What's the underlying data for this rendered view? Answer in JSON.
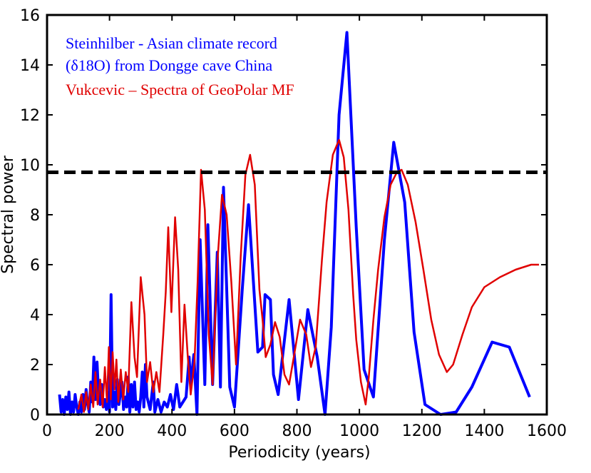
{
  "chart_data": {
    "type": "line",
    "xlabel": "Periodicity (years)",
    "ylabel": "Spectral power",
    "xlim": [
      0,
      1600
    ],
    "ylim": [
      0,
      16
    ],
    "xticks": [
      "0",
      "200",
      "400",
      "600",
      "800",
      "1000",
      "1200",
      "1400",
      "1600"
    ],
    "yticks": [
      "0",
      "2",
      "4",
      "6",
      "8",
      "10",
      "12",
      "14",
      "16"
    ],
    "grid": false,
    "annotations": [
      {
        "text": "Steinhilber - Asian climate record",
        "color": "#0000ff"
      },
      {
        "text": "(δ18O) from Dongge cave China",
        "color": "#0000ff"
      },
      {
        "text": "Vukcevic – Spectra of GeoPolar MF",
        "color": "#e00000"
      }
    ],
    "threshold": {
      "y": 9.7,
      "style": "dashed",
      "color": "#000000"
    },
    "series": [
      {
        "color": "#0000ff",
        "points": [
          [
            40,
            0.8
          ],
          [
            45,
            0.1
          ],
          [
            50,
            0.6
          ],
          [
            55,
            0.0
          ],
          [
            60,
            0.7
          ],
          [
            65,
            0.2
          ],
          [
            70,
            0.9
          ],
          [
            75,
            0.0
          ],
          [
            80,
            0.5
          ],
          [
            85,
            0.1
          ],
          [
            90,
            0.8
          ],
          [
            95,
            0.3
          ],
          [
            100,
            0.0
          ],
          [
            105,
            0.5
          ],
          [
            110,
            0.1
          ],
          [
            115,
            0.8
          ],
          [
            120,
            0.2
          ],
          [
            125,
            1.0
          ],
          [
            130,
            0.4
          ],
          [
            135,
            0.1
          ],
          [
            140,
            1.3
          ],
          [
            145,
            0.5
          ],
          [
            150,
            2.3
          ],
          [
            155,
            0.6
          ],
          [
            160,
            2.1
          ],
          [
            165,
            0.8
          ],
          [
            170,
            0.4
          ],
          [
            175,
            1.2
          ],
          [
            180,
            0.3
          ],
          [
            185,
            0.6
          ],
          [
            190,
            0.2
          ],
          [
            195,
            0.9
          ],
          [
            200,
            0.1
          ],
          [
            205,
            4.8
          ],
          [
            210,
            0.3
          ],
          [
            215,
            0.9
          ],
          [
            220,
            0.2
          ],
          [
            225,
            1.4
          ],
          [
            230,
            0.4
          ],
          [
            240,
            1.3
          ],
          [
            245,
            0.2
          ],
          [
            250,
            0.7
          ],
          [
            255,
            0.3
          ],
          [
            260,
            1.5
          ],
          [
            265,
            0.1
          ],
          [
            270,
            1.2
          ],
          [
            275,
            0.3
          ],
          [
            280,
            1.3
          ],
          [
            285,
            0.2
          ],
          [
            290,
            0.5
          ],
          [
            295,
            0.1
          ],
          [
            300,
            0.7
          ],
          [
            305,
            1.7
          ],
          [
            310,
            0.3
          ],
          [
            315,
            2.0
          ],
          [
            320,
            0.7
          ],
          [
            330,
            0.2
          ],
          [
            340,
            1.3
          ],
          [
            345,
            0.1
          ],
          [
            355,
            0.6
          ],
          [
            365,
            0.1
          ],
          [
            375,
            0.5
          ],
          [
            385,
            0.3
          ],
          [
            395,
            0.8
          ],
          [
            405,
            0.2
          ],
          [
            415,
            1.2
          ],
          [
            425,
            0.3
          ],
          [
            435,
            0.5
          ],
          [
            445,
            0.7
          ],
          [
            455,
            2.3
          ],
          [
            460,
            1.2
          ],
          [
            470,
            2.4
          ],
          [
            480,
            0.0
          ],
          [
            490,
            7.0
          ],
          [
            505,
            1.2
          ],
          [
            515,
            7.6
          ],
          [
            530,
            1.2
          ],
          [
            545,
            6.5
          ],
          [
            555,
            1.1
          ],
          [
            565,
            9.1
          ],
          [
            585,
            1.1
          ],
          [
            600,
            0.3
          ],
          [
            625,
            5.0
          ],
          [
            645,
            8.4
          ],
          [
            675,
            2.5
          ],
          [
            690,
            2.7
          ],
          [
            698,
            4.8
          ],
          [
            715,
            4.6
          ],
          [
            725,
            1.6
          ],
          [
            740,
            0.8
          ],
          [
            775,
            4.6
          ],
          [
            805,
            0.6
          ],
          [
            835,
            4.2
          ],
          [
            865,
            2.3
          ],
          [
            890,
            0.0
          ],
          [
            910,
            3.5
          ],
          [
            935,
            12.0
          ],
          [
            960,
            15.3
          ],
          [
            990,
            7.5
          ],
          [
            1015,
            1.8
          ],
          [
            1045,
            0.7
          ],
          [
            1080,
            7.0
          ],
          [
            1110,
            10.9
          ],
          [
            1145,
            8.5
          ],
          [
            1175,
            3.3
          ],
          [
            1210,
            0.4
          ],
          [
            1260,
            0.0
          ],
          [
            1310,
            0.1
          ],
          [
            1360,
            1.1
          ],
          [
            1425,
            2.9
          ],
          [
            1480,
            2.7
          ],
          [
            1545,
            0.7
          ]
        ]
      },
      {
        "color": "#e00000",
        "points": [
          [
            100,
            0.2
          ],
          [
            110,
            0.8
          ],
          [
            118,
            0.1
          ],
          [
            125,
            0.9
          ],
          [
            132,
            0.2
          ],
          [
            140,
            1.2
          ],
          [
            148,
            0.3
          ],
          [
            155,
            1.7
          ],
          [
            162,
            0.4
          ],
          [
            170,
            1.4
          ],
          [
            178,
            0.3
          ],
          [
            185,
            1.9
          ],
          [
            192,
            0.5
          ],
          [
            198,
            2.7
          ],
          [
            204,
            0.6
          ],
          [
            210,
            2.5
          ],
          [
            216,
            1.0
          ],
          [
            222,
            2.2
          ],
          [
            228,
            0.5
          ],
          [
            236,
            1.8
          ],
          [
            244,
            0.6
          ],
          [
            252,
            1.7
          ],
          [
            260,
            0.9
          ],
          [
            270,
            4.5
          ],
          [
            280,
            2.3
          ],
          [
            288,
            1.5
          ],
          [
            300,
            5.5
          ],
          [
            312,
            4.0
          ],
          [
            320,
            1.3
          ],
          [
            330,
            2.1
          ],
          [
            340,
            0.9
          ],
          [
            350,
            1.7
          ],
          [
            360,
            0.9
          ],
          [
            372,
            3.2
          ],
          [
            380,
            4.9
          ],
          [
            388,
            7.5
          ],
          [
            398,
            4.1
          ],
          [
            410,
            7.9
          ],
          [
            420,
            5.8
          ],
          [
            430,
            1.3
          ],
          [
            440,
            4.4
          ],
          [
            450,
            2.4
          ],
          [
            460,
            0.8
          ],
          [
            472,
            2.1
          ],
          [
            482,
            5.3
          ],
          [
            493,
            9.8
          ],
          [
            505,
            8.2
          ],
          [
            518,
            3.2
          ],
          [
            530,
            1.2
          ],
          [
            546,
            6.2
          ],
          [
            560,
            8.8
          ],
          [
            575,
            8.0
          ],
          [
            590,
            5.3
          ],
          [
            605,
            2.0
          ],
          [
            620,
            6.3
          ],
          [
            635,
            9.6
          ],
          [
            650,
            10.4
          ],
          [
            665,
            9.2
          ],
          [
            680,
            5.0
          ],
          [
            690,
            3.8
          ],
          [
            700,
            2.3
          ],
          [
            715,
            2.8
          ],
          [
            730,
            3.7
          ],
          [
            745,
            3.1
          ],
          [
            760,
            1.6
          ],
          [
            775,
            1.2
          ],
          [
            790,
            2.3
          ],
          [
            810,
            3.8
          ],
          [
            830,
            3.2
          ],
          [
            845,
            1.9
          ],
          [
            860,
            2.7
          ],
          [
            880,
            6.2
          ],
          [
            895,
            8.5
          ],
          [
            915,
            10.4
          ],
          [
            935,
            11.0
          ],
          [
            950,
            10.3
          ],
          [
            965,
            8.2
          ],
          [
            980,
            4.8
          ],
          [
            990,
            3.0
          ],
          [
            1005,
            1.3
          ],
          [
            1020,
            0.4
          ],
          [
            1030,
            1.5
          ],
          [
            1045,
            3.8
          ],
          [
            1060,
            5.8
          ],
          [
            1080,
            7.9
          ],
          [
            1100,
            9.2
          ],
          [
            1120,
            9.7
          ],
          [
            1135,
            9.8
          ],
          [
            1155,
            9.2
          ],
          [
            1180,
            7.7
          ],
          [
            1205,
            5.8
          ],
          [
            1230,
            3.8
          ],
          [
            1255,
            2.4
          ],
          [
            1280,
            1.7
          ],
          [
            1300,
            2.0
          ],
          [
            1330,
            3.2
          ],
          [
            1360,
            4.3
          ],
          [
            1400,
            5.1
          ],
          [
            1450,
            5.5
          ],
          [
            1500,
            5.8
          ],
          [
            1550,
            6.0
          ],
          [
            1575,
            6.0
          ]
        ]
      }
    ]
  }
}
